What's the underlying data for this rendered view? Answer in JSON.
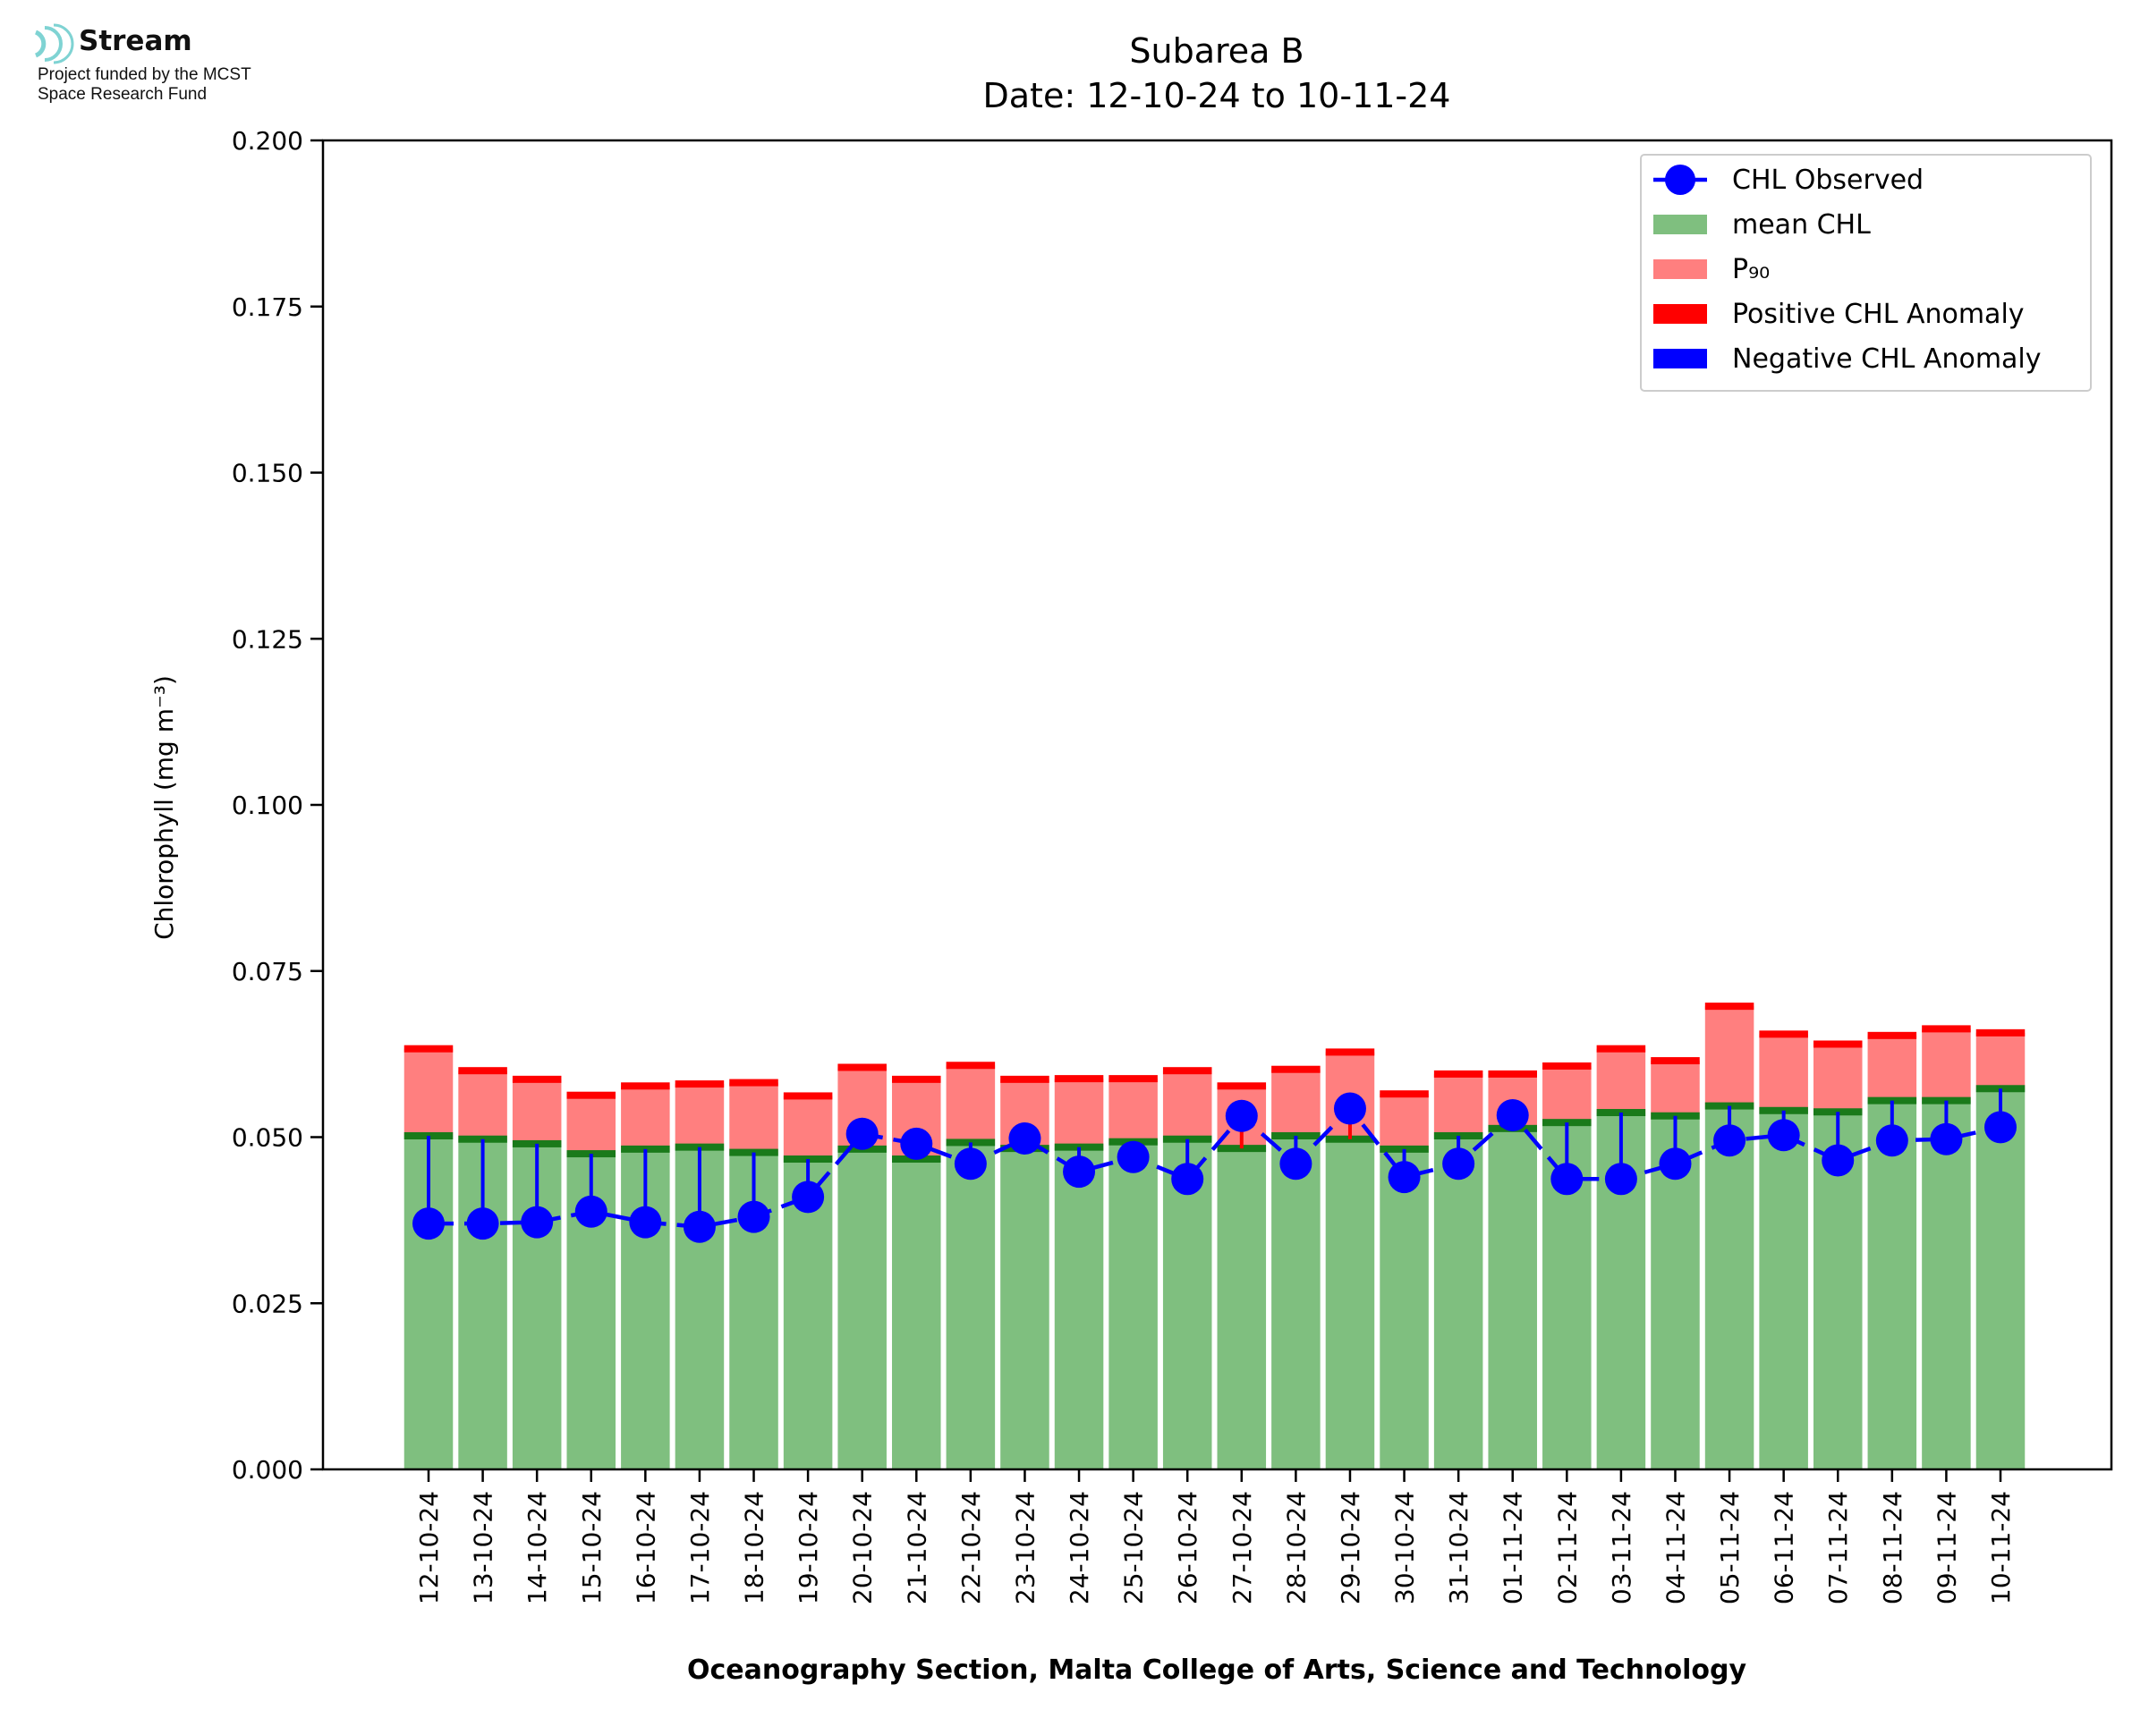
{
  "logo": {
    "name": "Stream",
    "line1": "Project funded by the MCST",
    "line2": "Space Research Fund",
    "color": "#7fd3d3"
  },
  "chart_data": {
    "type": "bar",
    "title": "Subarea B",
    "subtitle": "Date: 12-10-24 to 10-11-24",
    "ylabel": "Chlorophyll (mg m⁻³)",
    "xlabel": "Oceanography Section, Malta College of Arts, Science and Technology",
    "ylim": [
      0,
      0.2
    ],
    "yticks": [
      "0.000",
      "0.025",
      "0.050",
      "0.075",
      "0.100",
      "0.125",
      "0.150",
      "0.175",
      "0.200"
    ],
    "categories": [
      "12-10-24",
      "13-10-24",
      "14-10-24",
      "15-10-24",
      "16-10-24",
      "17-10-24",
      "18-10-24",
      "19-10-24",
      "20-10-24",
      "21-10-24",
      "22-10-24",
      "23-10-24",
      "24-10-24",
      "25-10-24",
      "26-10-24",
      "27-10-24",
      "28-10-24",
      "29-10-24",
      "30-10-24",
      "31-10-24",
      "01-11-24",
      "02-11-24",
      "03-11-24",
      "04-11-24",
      "05-11-24",
      "06-11-24",
      "07-11-24",
      "08-11-24",
      "09-11-24",
      "10-11-24"
    ],
    "series": [
      {
        "name": "CHL Observed",
        "color": "#0000ff",
        "values": [
          0.037,
          0.037,
          0.0372,
          0.0388,
          0.0372,
          0.0365,
          0.038,
          0.041,
          0.0505,
          0.049,
          0.046,
          0.0498,
          0.0448,
          0.047,
          0.0437,
          0.0532,
          0.046,
          0.0543,
          0.044,
          0.046,
          0.0533,
          0.0437,
          0.0437,
          0.046,
          0.0495,
          0.0503,
          0.0465,
          0.0495,
          0.0497,
          0.0515
        ]
      },
      {
        "name": "mean CHL",
        "color": "#7fbf7f",
        "values": [
          0.0502,
          0.0497,
          0.049,
          0.0475,
          0.0482,
          0.0485,
          0.0477,
          0.0467,
          0.0482,
          0.0467,
          0.0492,
          0.0483,
          0.0485,
          0.0493,
          0.0497,
          0.0483,
          0.0502,
          0.0497,
          0.0482,
          0.0502,
          0.0513,
          0.0522,
          0.0537,
          0.0532,
          0.0547,
          0.054,
          0.0538,
          0.0555,
          0.0555,
          0.0573
        ]
      },
      {
        "name": "P₉₀",
        "color": "#ff7f7f",
        "values": [
          0.0633,
          0.06,
          0.0587,
          0.0563,
          0.0577,
          0.058,
          0.0582,
          0.0562,
          0.0605,
          0.0587,
          0.0608,
          0.0587,
          0.0588,
          0.0588,
          0.06,
          0.0577,
          0.0602,
          0.0628,
          0.0565,
          0.0595,
          0.0595,
          0.0607,
          0.0633,
          0.0615,
          0.0697,
          0.0655,
          0.064,
          0.0653,
          0.0663,
          0.0657
        ]
      },
      {
        "name": "Positive CHL Anomaly",
        "color": "#ff0000"
      },
      {
        "name": "Negative CHL Anomaly",
        "color": "#0000ff"
      }
    ],
    "mean_marker_color": "#1a7a1a",
    "legend_position": "top-right",
    "grid": false
  }
}
